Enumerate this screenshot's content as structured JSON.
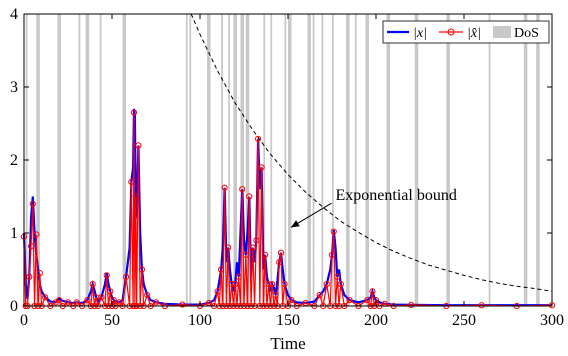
{
  "chart_data": {
    "type": "line",
    "title": "",
    "xlabel": "Time",
    "ylabel": "",
    "xlim": [
      0,
      300
    ],
    "ylim": [
      0,
      4
    ],
    "xticks": [
      0,
      50,
      100,
      150,
      200,
      250,
      300
    ],
    "yticks": [
      0,
      1,
      2,
      3,
      4
    ],
    "grid": false,
    "legend": {
      "placement": "top-right",
      "entries": [
        "|x|",
        "|x̂|",
        "DoS"
      ]
    },
    "series": [
      {
        "name": "|x|",
        "color": "#0000ff",
        "style": "solid",
        "x": [
          0,
          1,
          2,
          3,
          4,
          5,
          6,
          7,
          8,
          9,
          10,
          12,
          15,
          18,
          20,
          22,
          25,
          28,
          30,
          33,
          36,
          38,
          39,
          40,
          41,
          42,
          44,
          46,
          47,
          48,
          49,
          50,
          51,
          52,
          54,
          56,
          58,
          60,
          61,
          62,
          62.5,
          63,
          63.5,
          64,
          65,
          66,
          67,
          68,
          70,
          72,
          75,
          80,
          90,
          100,
          105,
          108,
          110,
          111,
          112,
          113,
          114,
          115,
          116,
          117,
          118,
          119,
          120,
          121,
          122,
          123,
          124,
          125,
          126,
          127,
          128,
          129,
          130,
          131,
          132,
          133,
          134,
          135,
          136,
          137,
          138,
          139,
          140,
          141,
          142,
          143,
          144,
          145,
          146,
          147,
          148,
          150,
          152,
          155,
          160,
          165,
          168,
          170,
          172,
          174,
          175,
          176,
          177,
          178,
          179,
          180,
          182,
          185,
          190,
          195,
          197,
          198,
          199,
          200,
          202,
          205,
          210,
          220,
          240,
          260,
          280,
          300
        ],
        "y": [
          1.0,
          0.3,
          0.1,
          0.4,
          1.2,
          1.5,
          1.0,
          0.7,
          0.5,
          0.3,
          0.2,
          0.12,
          0.06,
          0.05,
          0.1,
          0.07,
          0.05,
          0.04,
          0.05,
          0.04,
          0.08,
          0.2,
          0.3,
          0.22,
          0.12,
          0.06,
          0.12,
          0.3,
          0.45,
          0.3,
          0.2,
          0.12,
          0.08,
          0.06,
          0.05,
          0.08,
          0.4,
          0.8,
          1.7,
          1.9,
          2.7,
          2.6,
          1.5,
          1.2,
          2.2,
          1.0,
          0.5,
          0.3,
          0.15,
          0.08,
          0.05,
          0.03,
          0.02,
          0.02,
          0.04,
          0.08,
          0.2,
          0.35,
          0.5,
          0.8,
          1.62,
          0.6,
          0.8,
          0.5,
          0.3,
          0.2,
          0.3,
          0.6,
          0.4,
          1.0,
          1.6,
          0.9,
          0.7,
          1.0,
          1.5,
          0.4,
          0.8,
          0.6,
          0.9,
          2.29,
          1.6,
          1.9,
          0.5,
          0.7,
          0.4,
          0.3,
          0.2,
          0.3,
          0.25,
          0.15,
          0.35,
          0.6,
          0.73,
          0.5,
          0.3,
          0.15,
          0.08,
          0.05,
          0.04,
          0.06,
          0.15,
          0.2,
          0.3,
          0.5,
          0.7,
          1.04,
          0.8,
          0.4,
          0.5,
          0.3,
          0.15,
          0.08,
          0.05,
          0.08,
          0.12,
          0.2,
          0.12,
          0.08,
          0.05,
          0.03,
          0.02,
          0.015,
          0.01,
          0.01,
          0.01,
          0.01
        ]
      },
      {
        "name": "|x̂|",
        "color": "#ff0000",
        "style": "solid, circle markers",
        "x": [
          0,
          1,
          2,
          3,
          4,
          5,
          6,
          7,
          8,
          9,
          10,
          12,
          15,
          18,
          20,
          22,
          25,
          28,
          30,
          33,
          36,
          38,
          39,
          40,
          41,
          42,
          44,
          46,
          47,
          48,
          49,
          50,
          51,
          52,
          54,
          56,
          58,
          60,
          61,
          62,
          62.5,
          63,
          63.5,
          64,
          65,
          66,
          67,
          68,
          70,
          72,
          75,
          80,
          90,
          100,
          105,
          108,
          110,
          111,
          112,
          113,
          114,
          115,
          116,
          117,
          118,
          119,
          120,
          121,
          122,
          123,
          124,
          125,
          126,
          127,
          128,
          129,
          130,
          131,
          132,
          133,
          134,
          135,
          136,
          137,
          138,
          139,
          140,
          141,
          142,
          143,
          144,
          145,
          146,
          147,
          148,
          150,
          152,
          155,
          160,
          165,
          168,
          170,
          172,
          174,
          175,
          176,
          177,
          178,
          179,
          180,
          182,
          185,
          190,
          195,
          197,
          198,
          199,
          200,
          202,
          205,
          210,
          220,
          240,
          260,
          280,
          300
        ],
        "y": [
          0.95,
          0.0,
          0.0,
          0.4,
          0.82,
          1.4,
          0.0,
          0.98,
          0.0,
          0.45,
          0.0,
          0.12,
          0.0,
          0.05,
          0.08,
          0.0,
          0.05,
          0.0,
          0.05,
          0.0,
          0.08,
          0.0,
          0.3,
          0.0,
          0.12,
          0.0,
          0.12,
          0.0,
          0.42,
          0.0,
          0.2,
          0.0,
          0.08,
          0.0,
          0.05,
          0.0,
          0.4,
          0.0,
          1.7,
          0.0,
          2.65,
          0.0,
          1.5,
          0.0,
          2.2,
          0.0,
          0.5,
          0.0,
          0.15,
          0.0,
          0.05,
          0.0,
          0.02,
          0.0,
          0.04,
          0.0,
          0.2,
          0.0,
          0.5,
          0.0,
          1.62,
          0.0,
          0.8,
          0.0,
          0.3,
          0.0,
          0.3,
          0.0,
          0.4,
          0.0,
          1.6,
          0.0,
          0.7,
          0.0,
          1.5,
          0.0,
          0.8,
          0.0,
          0.9,
          2.29,
          0.0,
          1.9,
          0.0,
          0.7,
          0.0,
          0.3,
          0.0,
          0.3,
          0.0,
          0.15,
          0.0,
          0.6,
          0.73,
          0.0,
          0.3,
          0.0,
          0.08,
          0.0,
          0.04,
          0.0,
          0.15,
          0.0,
          0.3,
          0.0,
          0.7,
          1.02,
          0.0,
          0.4,
          0.0,
          0.3,
          0.0,
          0.08,
          0.0,
          0.08,
          0.0,
          0.2,
          0.0,
          0.08,
          0.0,
          0.03,
          0.0,
          0.015,
          0.0,
          0.01,
          0.0,
          0.01
        ]
      },
      {
        "name": "Exponential bound",
        "color": "#000000",
        "style": "dashed",
        "x": [
          95,
          100,
          110,
          120,
          130,
          140,
          150,
          160,
          170,
          180,
          190,
          200,
          210,
          220,
          230,
          240,
          250,
          260,
          270,
          280,
          290,
          300
        ],
        "y": [
          4.0,
          3.72,
          3.22,
          2.78,
          2.41,
          2.08,
          1.8,
          1.56,
          1.35,
          1.16,
          1.01,
          0.87,
          0.75,
          0.65,
          0.56,
          0.49,
          0.42,
          0.36,
          0.31,
          0.27,
          0.24,
          0.2
        ]
      }
    ],
    "dos_intervals": [
      [
        1,
        2
      ],
      [
        7,
        9
      ],
      [
        19,
        21
      ],
      [
        31,
        32
      ],
      [
        35,
        37
      ],
      [
        43,
        44
      ],
      [
        56,
        58
      ],
      [
        92,
        93
      ],
      [
        94,
        95
      ],
      [
        104,
        106
      ],
      [
        112,
        113
      ],
      [
        116,
        117
      ],
      [
        119,
        121
      ],
      [
        123,
        125
      ],
      [
        126,
        128
      ],
      [
        136,
        137
      ],
      [
        140,
        141
      ],
      [
        148,
        149
      ],
      [
        150,
        152
      ],
      [
        161,
        163
      ],
      [
        164,
        165
      ],
      [
        169,
        170
      ],
      [
        175,
        176
      ],
      [
        183,
        185
      ],
      [
        188,
        189
      ],
      [
        194,
        196
      ],
      [
        206,
        208
      ],
      [
        222,
        224
      ],
      [
        240,
        242
      ],
      [
        264,
        265
      ],
      [
        284,
        286
      ],
      [
        291,
        293
      ]
    ],
    "dos_color": "#c8c8c8",
    "annotations": [
      {
        "text": "Exponential bound",
        "x": 177,
        "y": 1.45,
        "arrow_to": [
          150,
          1.05
        ]
      }
    ]
  }
}
